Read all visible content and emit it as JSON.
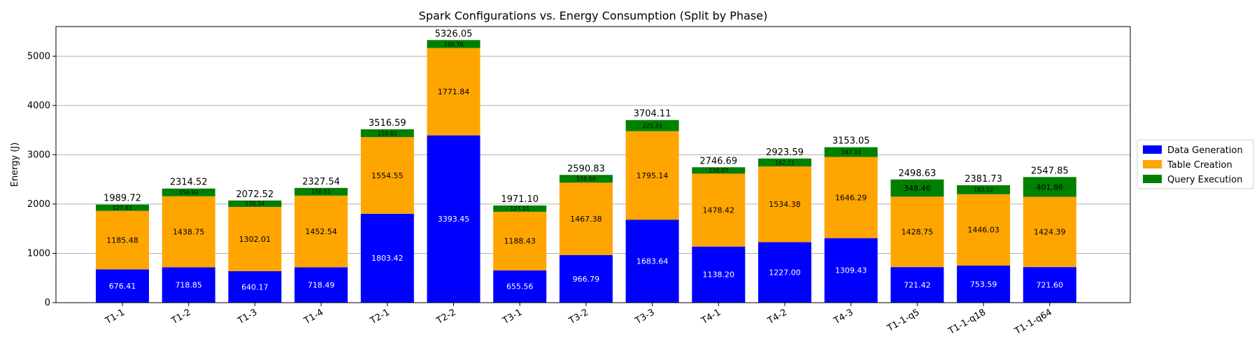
{
  "chart_data": {
    "type": "bar",
    "stacked": true,
    "title": "Spark Configurations vs. Energy Consumption (Split by Phase)",
    "xlabel": "",
    "ylabel": "Energy (J)",
    "ylim": [
      0,
      5600
    ],
    "yticks": [
      0,
      1000,
      2000,
      3000,
      4000,
      5000
    ],
    "grid": "y",
    "legend_position": "right",
    "categories": [
      "T1-1",
      "T1-2",
      "T1-3",
      "T1-4",
      "T2-1",
      "T2-2",
      "T3-1",
      "T3-2",
      "T3-3",
      "T4-1",
      "T4-2",
      "T4-3",
      "T1-1-q5",
      "T1-1-q18",
      "T1-1-q64"
    ],
    "series": [
      {
        "name": "Data Generation",
        "color": "#0000ff",
        "label_color": "#ffffff",
        "values": [
          676.41,
          718.85,
          640.17,
          718.49,
          1803.42,
          3393.45,
          655.56,
          966.79,
          1683.64,
          1138.2,
          1227.0,
          1309.43,
          721.42,
          753.59,
          721.6
        ]
      },
      {
        "name": "Table Creation",
        "color": "#ffa500",
        "label_color": "#000000",
        "values": [
          1185.48,
          1438.75,
          1302.01,
          1452.54,
          1554.55,
          1771.84,
          1188.43,
          1467.38,
          1795.14,
          1478.42,
          1534.38,
          1646.29,
          1428.75,
          1446.03,
          1424.39
        ]
      },
      {
        "name": "Query Execution",
        "color": "#008000",
        "label_color": "#000000",
        "values": [
          127.83,
          156.92,
          130.34,
          156.51,
          158.62,
          160.76,
          127.11,
          156.66,
          225.33,
          130.07,
          162.21,
          197.33,
          348.46,
          182.12,
          401.86
        ]
      }
    ],
    "totals": [
      "1989.72",
      "2314.52",
      "2072.52",
      "2327.54",
      "3516.59",
      "5326.05",
      "1971.10",
      "2590.83",
      "3704.11",
      "2746.69",
      "2923.59",
      "3153.05",
      "2498.63",
      "2381.73",
      "2547.85"
    ]
  }
}
